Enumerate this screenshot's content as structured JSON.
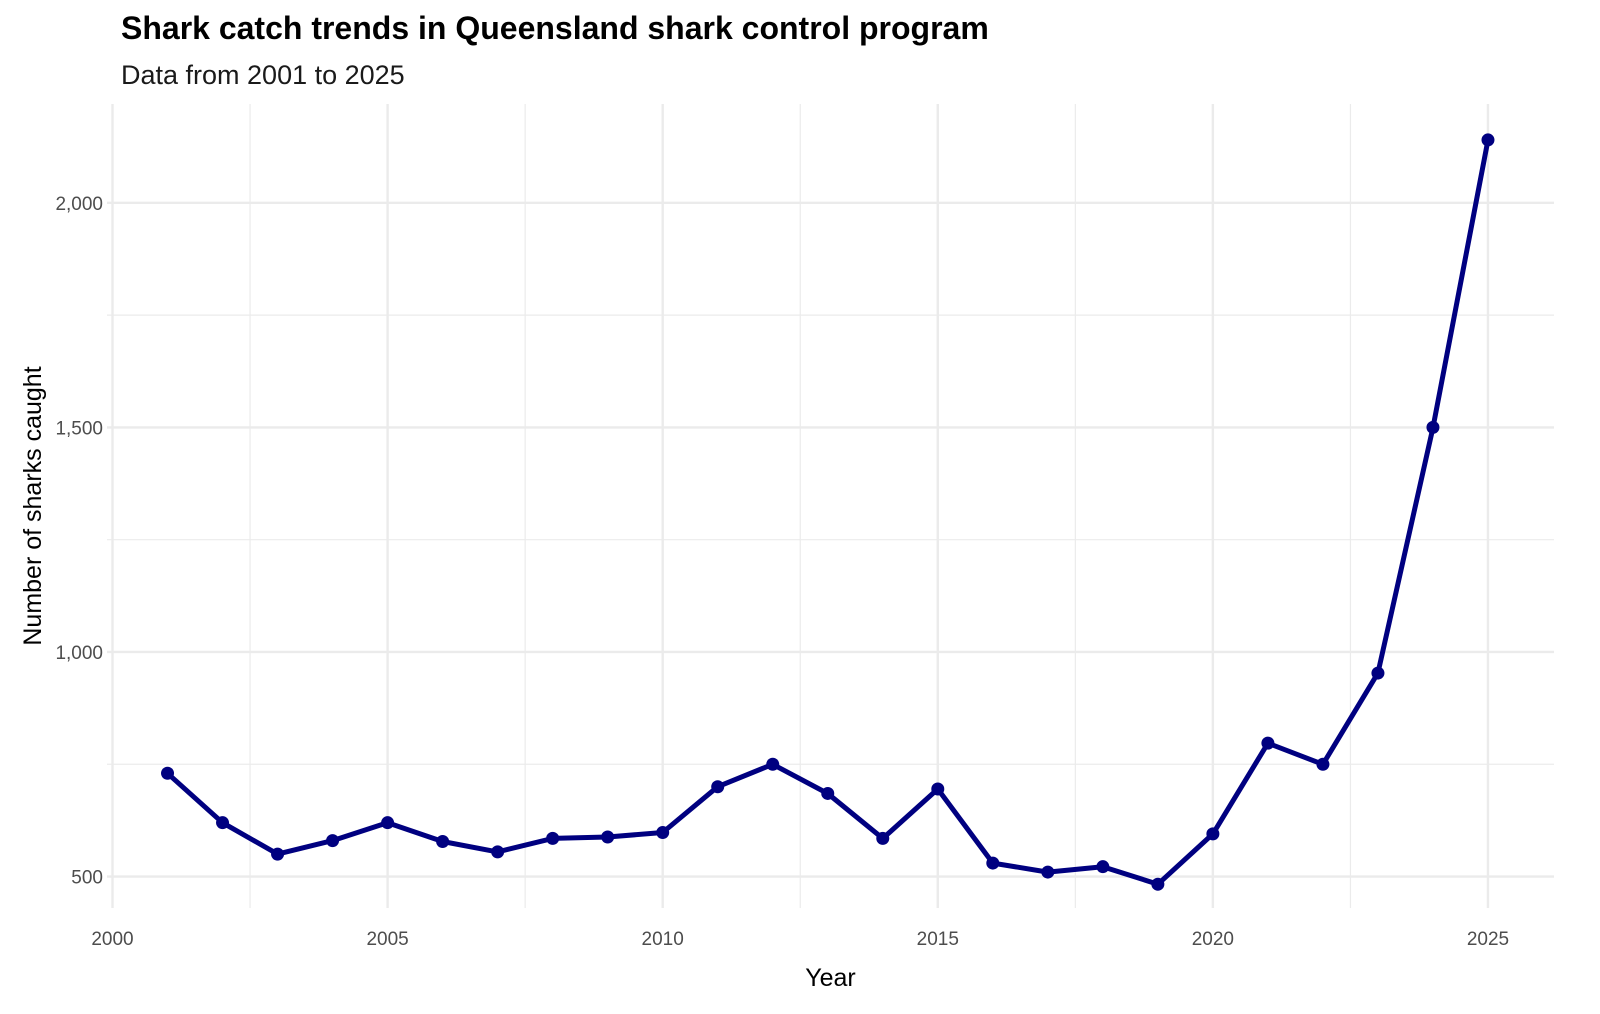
{
  "chart_data": {
    "type": "line",
    "title": "Shark catch trends in Queensland shark control program",
    "subtitle": "Data from 2001 to 2025",
    "xlabel": "Year",
    "ylabel": "Number of sharks caught",
    "xlim": [
      1999.9,
      2026.2
    ],
    "ylim": [
      430,
      2220
    ],
    "x_ticks": [
      2000,
      2005,
      2010,
      2015,
      2020,
      2025
    ],
    "x_tick_labels": [
      "2000",
      "2005",
      "2010",
      "2015",
      "2020",
      "2025"
    ],
    "y_ticks": [
      500,
      1000,
      1500,
      2000
    ],
    "y_tick_labels": [
      "500",
      "1,000",
      "1,500",
      "2,000"
    ],
    "grid": true,
    "legend": "none",
    "line_color": "#000080",
    "grid_color": "#ebebeb",
    "series": [
      {
        "x": [
          2001,
          2002,
          2003,
          2004,
          2005,
          2006,
          2007,
          2008,
          2009,
          2010,
          2011,
          2012,
          2013,
          2014,
          2015,
          2016,
          2017,
          2018,
          2019,
          2020,
          2021,
          2022,
          2023,
          2024,
          2025
        ],
        "y": [
          730,
          620,
          550,
          580,
          620,
          578,
          555,
          585,
          588,
          598,
          700,
          750,
          685,
          585,
          695,
          530,
          510,
          522,
          483,
          595,
          797,
          750,
          953,
          1500,
          2140
        ]
      }
    ]
  }
}
